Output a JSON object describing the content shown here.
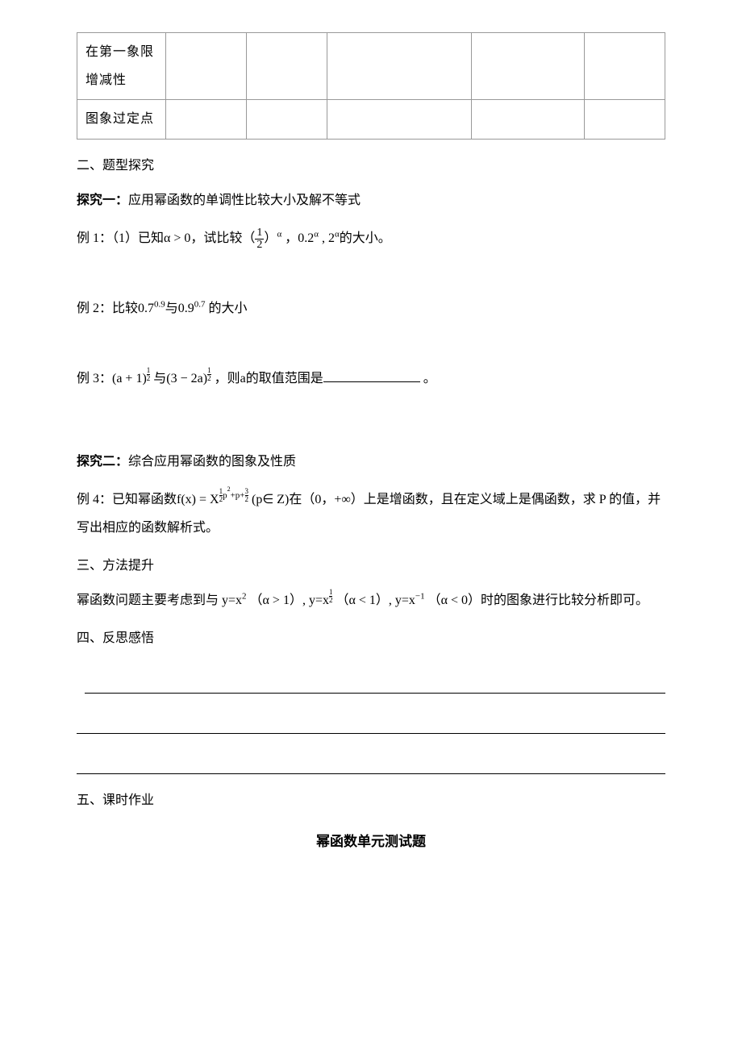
{
  "table": {
    "row1_label": "在第一象限增减性",
    "row2_label": "图象过定点"
  },
  "section2": {
    "heading": "二、题型探究",
    "explore1": {
      "label": "探究一：",
      "text": "应用幂函数的单调性比较大小及解不等式"
    },
    "ex1": {
      "prefix": "例 1：（1）已知α > 0，试比较（",
      "frac_num": "1",
      "frac_den": "2",
      "mid1": "）",
      "sup1": "α",
      "mid2": "  ，0.2",
      "sup2": "α",
      "mid3": " , 2",
      "sup3": "α",
      "suffix": "的大小。"
    },
    "ex2": {
      "prefix": "例 2：比较0.7",
      "sup1": "0.9",
      "mid": "与0.9",
      "sup2": "0.7",
      "suffix": " 的大小"
    },
    "ex3": {
      "prefix": "例 3：(a + 1)",
      "frac1_num": "1",
      "frac1_den": "2",
      "mid1": " 与(3 − 2a)",
      "frac2_num": "1",
      "frac2_den": "2",
      "mid2": " ，则a的取值范围是",
      "suffix": "  。"
    },
    "explore2": {
      "label": "探究二：",
      "text": "综合应用幂函数的图象及性质"
    },
    "ex4": {
      "prefix": "例 4：已知幂函数f(x) = X",
      "exp_part1_num": "1",
      "exp_part1_den": "2",
      "exp_mid1": "p",
      "exp_sup": "2",
      "exp_mid2": "+p+",
      "exp_part2_num": "3",
      "exp_part2_den": "2",
      "mid": " (p∈ Z)在（0，+∞）上是增函数，且在定义域上是偶函数，求 P 的值，并写出相应的函数解析式。"
    }
  },
  "section3": {
    "heading": "三、方法提升",
    "line1_p1": "幂函数问题主要考虑到与 y=x",
    "line1_sup1": "2",
    "line1_p2": "  （α > 1）, y=x",
    "line1_frac_num": "1",
    "line1_frac_den": "2",
    "line1_p3": "  （α < 1）, y=x",
    "line1_sup2": "−1",
    "line1_p4": "  （α < 0）时的图象进行比较分析即可。"
  },
  "section4": {
    "heading": "四、反思感悟"
  },
  "section5": {
    "heading": "五、课时作业",
    "title": "幂函数单元测试题"
  }
}
